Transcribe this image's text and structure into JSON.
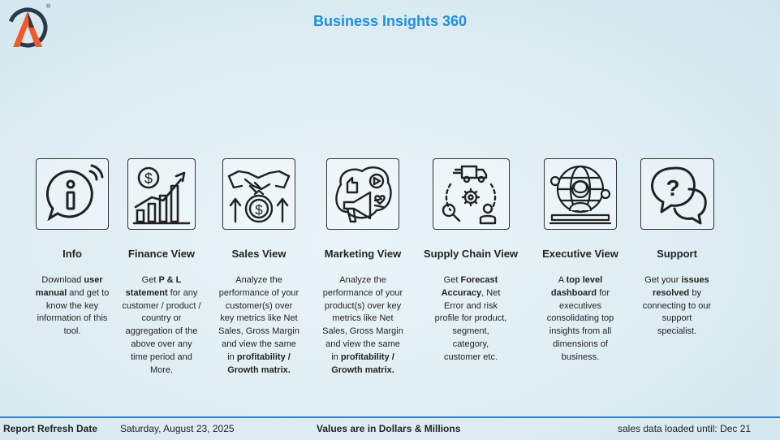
{
  "app": {
    "title": "Business Insights 360",
    "logo_mark": "®"
  },
  "tiles": [
    {
      "icon": "info-icon",
      "title": "Info",
      "desc": [
        {
          "t": "Download "
        },
        {
          "t": "user manual",
          "b": true
        },
        {
          "t": " and get to know the key information of this tool."
        }
      ]
    },
    {
      "icon": "finance-chart-icon",
      "title": "Finance View",
      "desc": [
        {
          "t": "Get "
        },
        {
          "t": "P & L statement",
          "b": true
        },
        {
          "t": " for any customer / product / country or aggregation of the above over any time period and More."
        }
      ]
    },
    {
      "icon": "sales-handshake-icon",
      "title": "Sales View",
      "desc": [
        {
          "t": "Analyze the performance of your customer(s) over key metrics like Net Sales, Gross Margin and view the same in "
        },
        {
          "t": "profitability / Growth matrix.",
          "b": true
        }
      ]
    },
    {
      "icon": "marketing-megaphone-icon",
      "title": "Marketing View",
      "desc": [
        {
          "t": "Analyze the performance of your product(s) over key metrics like Net Sales, Gross Margin and view the same in "
        },
        {
          "t": "profitability / Growth matrix.",
          "b": true
        }
      ]
    },
    {
      "icon": "supply-chain-icon",
      "title": "Supply Chain View",
      "desc": [
        {
          "t": "Get "
        },
        {
          "t": "Forecast Accuracy",
          "b": true
        },
        {
          "t": ", Net Error and risk profile for product, segment, category, customer etc."
        }
      ]
    },
    {
      "icon": "executive-globe-icon",
      "title": "Executive View",
      "desc": [
        {
          "t": "A "
        },
        {
          "t": "top level dashboard",
          "b": true
        },
        {
          "t": " for executives consolidating top insights from all dimensions of business."
        }
      ]
    },
    {
      "icon": "support-chat-icon",
      "title": "Support",
      "desc": [
        {
          "t": "Get your "
        },
        {
          "t": "issues resolved",
          "b": true
        },
        {
          "t": " by connecting to our support specialist."
        }
      ]
    }
  ],
  "footer": {
    "refresh_label": "Report Refresh Date",
    "refresh_date": "Saturday, August 23, 2025",
    "units_note": "Values are in Dollars & Millions",
    "loaded_until": "sales data loaded until: Dec 21"
  },
  "colors": {
    "title": "#1e8fe0",
    "footer_line": "#2f7fd0",
    "logo_orange": "#f15a29",
    "logo_dark": "#2b3a4a"
  }
}
